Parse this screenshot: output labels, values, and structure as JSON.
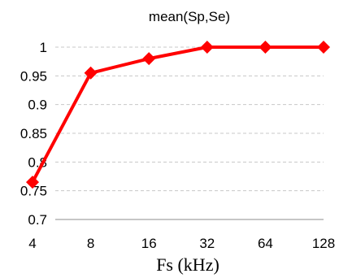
{
  "chart_data": {
    "type": "line",
    "title": "mean(Sp,Se)",
    "xlabel": "Fs (kHz)",
    "ylabel": "",
    "categories": [
      "4",
      "8",
      "16",
      "32",
      "64",
      "128"
    ],
    "series": [
      {
        "values": [
          0.765,
          0.955,
          0.98,
          1.0,
          1.0,
          1.0
        ],
        "color": "#ff0000",
        "marker": "diamond"
      }
    ],
    "ylim": [
      0.7,
      1.0
    ],
    "yticks": [
      0.7,
      0.75,
      0.8,
      0.85,
      0.9,
      0.95,
      1
    ],
    "ytick_labels": [
      "0.7",
      "0.75",
      "0.8",
      "0.85",
      "0.9",
      "0.95",
      "1"
    ],
    "grid": true,
    "legend": "none"
  }
}
